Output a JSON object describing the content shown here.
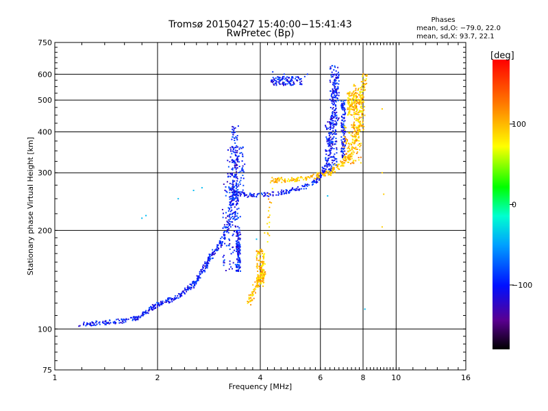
{
  "chart_data": {
    "type": "scatter",
    "title": "Tromsø 20150427 15:40:00−15:41:43",
    "subtitle": "RwPretec (Bp)",
    "xlabel": "Frequency [MHz]",
    "ylabel": "Stationary phase Virtual Height [km]",
    "x_scale": "log",
    "y_scale": "log",
    "xlim": [
      1,
      16
    ],
    "ylim": [
      75,
      750
    ],
    "x_ticks": [
      1,
      2,
      4,
      6,
      8,
      10,
      16
    ],
    "x_tick_labels": [
      "1",
      "2",
      "4",
      "6",
      "8",
      "10",
      "16"
    ],
    "y_ticks": [
      75,
      100,
      200,
      300,
      400,
      500,
      600,
      750
    ],
    "y_tick_labels": [
      "75",
      "100",
      "200",
      "300",
      "400",
      "500",
      "600",
      "750"
    ],
    "grid": true,
    "stats": {
      "heading": "Phases",
      "line_o": "mean, sd,O: −79.0, 22.0",
      "line_x": "mean, sd,X:  93.7, 22.1"
    },
    "colorbar": {
      "unit_label": "[deg]",
      "range": [
        -180,
        180
      ],
      "ticks": [
        100,
        0,
        -100
      ],
      "tick_labels": [
        "100",
        "0",
        "−100"
      ]
    },
    "series": [
      {
        "mode": "O",
        "phase": -100,
        "trace": [
          [
            1.17,
            103
          ],
          [
            1.3,
            104
          ],
          [
            1.45,
            105
          ],
          [
            1.6,
            106
          ],
          [
            1.75,
            108
          ],
          [
            1.85,
            112
          ],
          [
            1.95,
            117
          ],
          [
            2.05,
            120
          ],
          [
            2.2,
            123
          ],
          [
            2.35,
            128
          ],
          [
            2.5,
            134
          ],
          [
            2.6,
            140
          ],
          [
            2.7,
            150
          ],
          [
            2.8,
            160
          ],
          [
            2.9,
            170
          ],
          [
            3.05,
            180
          ],
          [
            3.15,
            195
          ],
          [
            3.25,
            215
          ],
          [
            3.3,
            245
          ],
          [
            3.35,
            262
          ],
          [
            3.5,
            258
          ],
          [
            3.8,
            256
          ],
          [
            4.3,
            258
          ],
          [
            4.8,
            263
          ],
          [
            5.3,
            270
          ],
          [
            5.8,
            282
          ],
          [
            6.1,
            300
          ],
          [
            6.3,
            330
          ],
          [
            6.45,
            380
          ],
          [
            6.55,
            440
          ],
          [
            6.65,
            520
          ],
          [
            6.7,
            600
          ]
        ],
        "cluster": [
          [
            3.1,
            150,
            3.5,
            290
          ],
          [
            3.2,
            260,
            3.6,
            360
          ],
          [
            3.4,
            150,
            3.5,
            200
          ],
          [
            3.3,
            215,
            3.45,
            420
          ],
          [
            6.2,
            300,
            6.7,
            430
          ],
          [
            6.4,
            420,
            6.8,
            640
          ],
          [
            6.9,
            330,
            7.1,
            500
          ],
          [
            4.3,
            555,
            5.3,
            590
          ]
        ]
      },
      {
        "mode": "X",
        "phase": 95,
        "trace": [
          [
            3.7,
            120
          ],
          [
            3.8,
            128
          ],
          [
            3.9,
            138
          ],
          [
            4.0,
            145
          ],
          [
            4.1,
            150
          ],
          [
            4.35,
            285
          ],
          [
            4.6,
            285
          ],
          [
            5.0,
            287
          ],
          [
            5.5,
            290
          ],
          [
            6.0,
            295
          ],
          [
            6.4,
            300
          ],
          [
            6.8,
            315
          ],
          [
            7.2,
            330
          ],
          [
            7.5,
            360
          ],
          [
            7.7,
            400
          ],
          [
            7.85,
            460
          ],
          [
            8.0,
            540
          ],
          [
            8.1,
            600
          ]
        ],
        "cluster": [
          [
            3.9,
            135,
            4.1,
            175
          ],
          [
            7.0,
            320,
            7.9,
            420
          ],
          [
            7.5,
            400,
            8.1,
            560
          ],
          [
            7.2,
            450,
            7.7,
            530
          ]
        ]
      }
    ],
    "scatter_points": [
      [
        1.8,
        218
      ],
      [
        1.85,
        222
      ],
      [
        2.3,
        250
      ],
      [
        2.55,
        265
      ],
      [
        2.7,
        270
      ],
      [
        3.9,
        188
      ],
      [
        4.35,
        610
      ],
      [
        4.7,
        600
      ],
      [
        5.4,
        590
      ],
      [
        5.5,
        600
      ],
      [
        9.1,
        470
      ],
      [
        9.1,
        300
      ],
      [
        9.1,
        205
      ],
      [
        9.2,
        258
      ],
      [
        6.3,
        255
      ],
      [
        8.1,
        115
      ]
    ]
  }
}
